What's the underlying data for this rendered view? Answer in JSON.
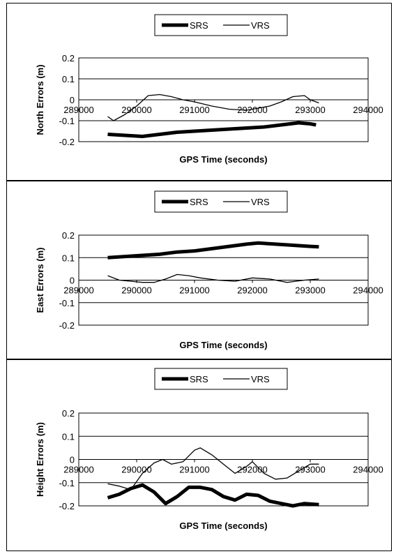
{
  "chart_data": [
    {
      "type": "line",
      "title": "",
      "xlabel": "GPS Time (seconds)",
      "ylabel": "North Errors (m)",
      "xlim": [
        289000,
        294000
      ],
      "ylim": [
        -0.2,
        0.2
      ],
      "x_ticks": [
        "289000",
        "290000",
        "291000",
        "292000",
        "293000",
        "294000"
      ],
      "y_ticks": [
        "0.2",
        "0.1",
        "0",
        "-0.1",
        "-0.2"
      ],
      "grid": "horizontal",
      "legend": "top-center",
      "series": [
        {
          "name": "SRS",
          "style": "thick",
          "color": "#000000",
          "x": [
            289500,
            289800,
            290100,
            290400,
            290700,
            291000,
            291300,
            291600,
            291900,
            292200,
            292500,
            292800,
            293000,
            293100
          ],
          "y": [
            -0.165,
            -0.17,
            -0.175,
            -0.165,
            -0.155,
            -0.15,
            -0.145,
            -0.14,
            -0.135,
            -0.13,
            -0.12,
            -0.11,
            -0.115,
            -0.12
          ]
        },
        {
          "name": "VRS",
          "style": "thin",
          "color": "#000000",
          "x": [
            289500,
            289600,
            289800,
            290000,
            290200,
            290400,
            290600,
            290800,
            291000,
            291300,
            291600,
            291900,
            292100,
            292300,
            292500,
            292700,
            292900,
            293000,
            293150
          ],
          "y": [
            -0.08,
            -0.1,
            -0.07,
            -0.03,
            0.02,
            0.025,
            0.015,
            0.0,
            -0.01,
            -0.03,
            -0.045,
            -0.05,
            -0.04,
            -0.03,
            -0.01,
            0.015,
            0.02,
            0.0,
            -0.015
          ]
        }
      ]
    },
    {
      "type": "line",
      "title": "",
      "xlabel": "GPS Time (seconds)",
      "ylabel": "East Errors (m)",
      "xlim": [
        289000,
        294000
      ],
      "ylim": [
        -0.2,
        0.2
      ],
      "x_ticks": [
        "289000",
        "290000",
        "291000",
        "292000",
        "293000",
        "294000"
      ],
      "y_ticks": [
        "0.2",
        "0.1",
        "0",
        "-0.1",
        "-0.2"
      ],
      "grid": "horizontal",
      "legend": "top-center",
      "series": [
        {
          "name": "SRS",
          "style": "thick",
          "color": "#000000",
          "x": [
            289500,
            289800,
            290100,
            290400,
            290700,
            291000,
            291300,
            291600,
            291900,
            292100,
            292400,
            292700,
            293000,
            293150
          ],
          "y": [
            0.1,
            0.105,
            0.11,
            0.115,
            0.125,
            0.13,
            0.14,
            0.15,
            0.16,
            0.165,
            0.16,
            0.155,
            0.15,
            0.148
          ]
        },
        {
          "name": "VRS",
          "style": "thin",
          "color": "#000000",
          "x": [
            289500,
            289700,
            289900,
            290100,
            290300,
            290500,
            290700,
            290900,
            291100,
            291400,
            291700,
            292000,
            292300,
            292600,
            292900,
            293150
          ],
          "y": [
            0.02,
            0.0,
            -0.005,
            -0.01,
            -0.01,
            0.005,
            0.025,
            0.02,
            0.01,
            0.0,
            -0.005,
            0.01,
            0.005,
            -0.01,
            0.0,
            0.005
          ]
        }
      ]
    },
    {
      "type": "line",
      "title": "",
      "xlabel": "GPS Time (seconds)",
      "ylabel": "Height Errors (m)",
      "xlim": [
        289000,
        294000
      ],
      "ylim": [
        -0.2,
        0.2
      ],
      "x_ticks": [
        "289000",
        "290000",
        "291000",
        "292000",
        "293000",
        "294000"
      ],
      "y_ticks": [
        "0.2",
        "0.1",
        "0",
        "-0.1",
        "-0.2"
      ],
      "grid": "horizontal",
      "legend": "top-center",
      "series": [
        {
          "name": "SRS",
          "style": "thick",
          "color": "#000000",
          "x": [
            289500,
            289700,
            289900,
            290100,
            290300,
            290500,
            290700,
            290900,
            291100,
            291300,
            291500,
            291700,
            291900,
            292100,
            292300,
            292500,
            292700,
            292900,
            293150
          ],
          "y": [
            -0.165,
            -0.15,
            -0.125,
            -0.11,
            -0.14,
            -0.19,
            -0.16,
            -0.12,
            -0.12,
            -0.13,
            -0.16,
            -0.175,
            -0.15,
            -0.155,
            -0.18,
            -0.19,
            -0.2,
            -0.19,
            -0.195
          ]
        },
        {
          "name": "VRS",
          "style": "thin",
          "color": "#000000",
          "x": [
            289500,
            289700,
            289900,
            290100,
            290300,
            290450,
            290600,
            290800,
            291000,
            291100,
            291300,
            291500,
            291700,
            291900,
            292000,
            292200,
            292400,
            292600,
            292800,
            293000,
            293150
          ],
          "y": [
            -0.105,
            -0.115,
            -0.13,
            -0.06,
            -0.015,
            0.0,
            -0.02,
            -0.01,
            0.04,
            0.05,
            0.02,
            -0.02,
            -0.06,
            -0.03,
            -0.01,
            -0.06,
            -0.085,
            -0.08,
            -0.05,
            -0.02,
            -0.02
          ]
        }
      ]
    }
  ]
}
